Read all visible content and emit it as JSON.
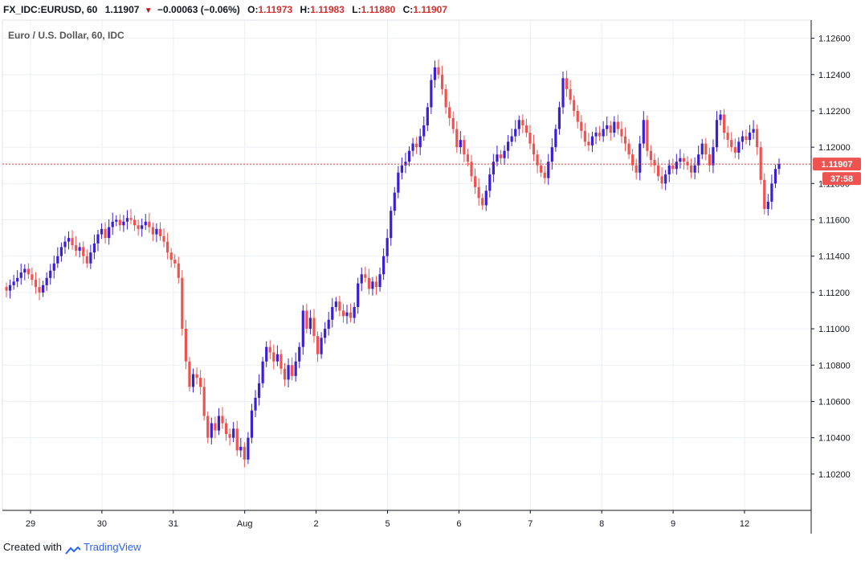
{
  "header": {
    "symbol": "FX_IDC:EURUSD, 60",
    "last": "1.11907",
    "change": "−0.00063 (−0.06%)",
    "o_label": "O:",
    "o_value": "1.11973",
    "h_label": "H:",
    "h_value": "1.11983",
    "l_label": "L:",
    "l_value": "1.11880",
    "c_label": "C:",
    "c_value": "1.11907"
  },
  "pane_title": "Euro / U.S. Dollar, 60, IDC",
  "price_badge": "1.11907",
  "countdown_badge": "37:58",
  "footer": {
    "prefix": "Created with",
    "brand": "TradingView"
  },
  "colors": {
    "up": "#3a1fd6",
    "down": "#ef5350",
    "grid": "#eceff5",
    "last_line": "#e53935"
  },
  "chart_data": {
    "type": "candlestick",
    "title": "Euro / U.S. Dollar, 60, IDC",
    "ylim": [
      1.1,
      1.127
    ],
    "y_ticks": [
      "1.12600",
      "1.12400",
      "1.12200",
      "1.12000",
      "1.11800",
      "1.11600",
      "1.11400",
      "1.11200",
      "1.11000",
      "1.10800",
      "1.10600",
      "1.10400",
      "1.10200"
    ],
    "x_ticks": [
      "29",
      "30",
      "31",
      "Aug",
      "2",
      "5",
      "6",
      "7",
      "8",
      "9",
      "12"
    ],
    "last_price": 1.11907,
    "series_close": [
      1.1121,
      1.1124,
      1.1126,
      1.1128,
      1.1131,
      1.1133,
      1.113,
      1.1127,
      1.1123,
      1.112,
      1.1124,
      1.1128,
      1.1132,
      1.1136,
      1.114,
      1.1145,
      1.1148,
      1.115,
      1.1146,
      1.1143,
      1.1145,
      1.114,
      1.1136,
      1.1142,
      1.1147,
      1.1152,
      1.1155,
      1.115,
      1.1156,
      1.1159,
      1.116,
      1.1157,
      1.1159,
      1.1161,
      1.116,
      1.1157,
      1.1155,
      1.1157,
      1.1159,
      1.1156,
      1.1152,
      1.1155,
      1.1151,
      1.1148,
      1.1142,
      1.1138,
      1.1136,
      1.1128,
      1.11,
      1.1082,
      1.1068,
      1.1075,
      1.1073,
      1.1068,
      1.1052,
      1.104,
      1.1048,
      1.1044,
      1.1052,
      1.1048,
      1.1042,
      1.104,
      1.1045,
      1.1033,
      1.1035,
      1.1028,
      1.104,
      1.1055,
      1.1062,
      1.107,
      1.1082,
      1.109,
      1.1087,
      1.1082,
      1.1086,
      1.1078,
      1.1072,
      1.108,
      1.1074,
      1.1082,
      1.109,
      1.111,
      1.11,
      1.1106,
      1.1096,
      1.1086,
      1.1095,
      1.11,
      1.1105,
      1.1112,
      1.1115,
      1.111,
      1.1107,
      1.1109,
      1.1106,
      1.1112,
      1.1125,
      1.113,
      1.1128,
      1.1122,
      1.1126,
      1.1123,
      1.113,
      1.114,
      1.115,
      1.1165,
      1.1175,
      1.1186,
      1.119,
      1.1192,
      1.1198,
      1.1202,
      1.12,
      1.1206,
      1.1212,
      1.1222,
      1.1237,
      1.1244,
      1.124,
      1.1232,
      1.1222,
      1.1216,
      1.121,
      1.12,
      1.1204,
      1.1196,
      1.1192,
      1.1184,
      1.1178,
      1.1172,
      1.1168,
      1.1176,
      1.1185,
      1.1192,
      1.1196,
      1.1194,
      1.1198,
      1.1203,
      1.1206,
      1.121,
      1.1215,
      1.1212,
      1.1208,
      1.1202,
      1.1196,
      1.119,
      1.1186,
      1.1183,
      1.1192,
      1.12,
      1.121,
      1.1222,
      1.1238,
      1.1232,
      1.1226,
      1.122,
      1.1214,
      1.1209,
      1.1203,
      1.1201,
      1.1206,
      1.1208,
      1.1206,
      1.121,
      1.1212,
      1.1208,
      1.1214,
      1.121,
      1.1206,
      1.1202,
      1.1196,
      1.119,
      1.1186,
      1.1202,
      1.1215,
      1.1198,
      1.1193,
      1.119,
      1.1184,
      1.118,
      1.1185,
      1.119,
      1.1188,
      1.1192,
      1.1194,
      1.1192,
      1.119,
      1.1186,
      1.119,
      1.1196,
      1.1202,
      1.1196,
      1.119,
      1.12,
      1.1215,
      1.1218,
      1.1208,
      1.1204,
      1.12,
      1.1197,
      1.1203,
      1.1206,
      1.1204,
      1.1208,
      1.121,
      1.12,
      1.1182,
      1.1166,
      1.117,
      1.118,
      1.1188,
      1.11907
    ]
  }
}
